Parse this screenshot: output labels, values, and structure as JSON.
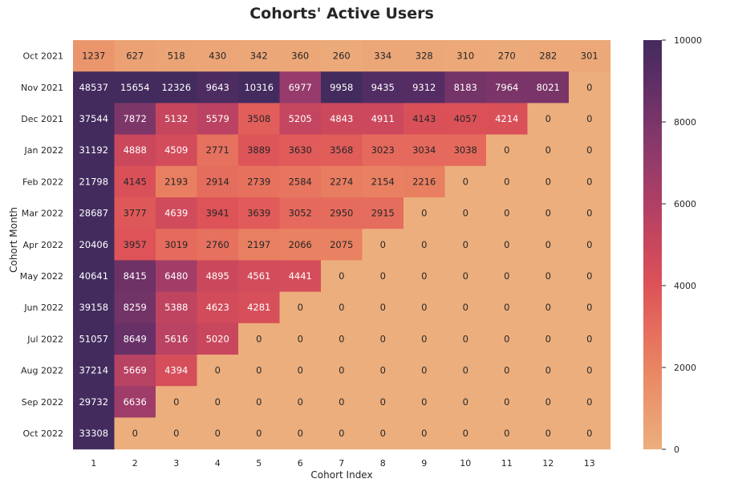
{
  "chart_data": {
    "type": "heatmap",
    "title": "Cohorts' Active Users",
    "xlabel": "Cohort Index",
    "ylabel": "Cohort Month",
    "x": [
      "1",
      "2",
      "3",
      "4",
      "5",
      "6",
      "7",
      "8",
      "9",
      "10",
      "11",
      "12",
      "13"
    ],
    "y": [
      "Oct 2021",
      "Nov 2021",
      "Dec 2021",
      "Jan 2022",
      "Feb 2022",
      "Mar 2022",
      "Apr 2022",
      "May 2022",
      "Jun 2022",
      "Jul 2022",
      "Aug 2022",
      "Sep 2022",
      "Oct 2022"
    ],
    "values": [
      [
        1237,
        627,
        518,
        430,
        342,
        360,
        260,
        334,
        328,
        310,
        270,
        282,
        301
      ],
      [
        48537,
        15654,
        12326,
        9643,
        10316,
        6977,
        9958,
        9435,
        9312,
        8183,
        7964,
        8021,
        0
      ],
      [
        37544,
        7872,
        5132,
        5579,
        3508,
        5205,
        4843,
        4911,
        4143,
        4057,
        4214,
        0,
        0
      ],
      [
        31192,
        4888,
        4509,
        2771,
        3889,
        3630,
        3568,
        3023,
        3034,
        3038,
        0,
        0,
        0
      ],
      [
        21798,
        4145,
        2193,
        2914,
        2739,
        2584,
        2274,
        2154,
        2216,
        0,
        0,
        0,
        0
      ],
      [
        28687,
        3777,
        4639,
        3941,
        3639,
        3052,
        2950,
        2915,
        0,
        0,
        0,
        0,
        0
      ],
      [
        20406,
        3957,
        3019,
        2760,
        2197,
        2066,
        2075,
        0,
        0,
        0,
        0,
        0,
        0
      ],
      [
        40641,
        8415,
        6480,
        4895,
        4561,
        4441,
        0,
        0,
        0,
        0,
        0,
        0,
        0
      ],
      [
        39158,
        8259,
        5388,
        4623,
        4281,
        0,
        0,
        0,
        0,
        0,
        0,
        0,
        0
      ],
      [
        51057,
        8649,
        5616,
        5020,
        0,
        0,
        0,
        0,
        0,
        0,
        0,
        0,
        0
      ],
      [
        37214,
        5669,
        4394,
        0,
        0,
        0,
        0,
        0,
        0,
        0,
        0,
        0,
        0
      ],
      [
        29732,
        6636,
        0,
        0,
        0,
        0,
        0,
        0,
        0,
        0,
        0,
        0,
        0
      ],
      [
        33308,
        0,
        0,
        0,
        0,
        0,
        0,
        0,
        0,
        0,
        0,
        0,
        0
      ]
    ],
    "colorbar": {
      "range": [
        0,
        10000
      ],
      "ticks": [
        "0",
        "2000",
        "4000",
        "6000",
        "8000",
        "10000"
      ]
    },
    "colormap": "flare"
  }
}
